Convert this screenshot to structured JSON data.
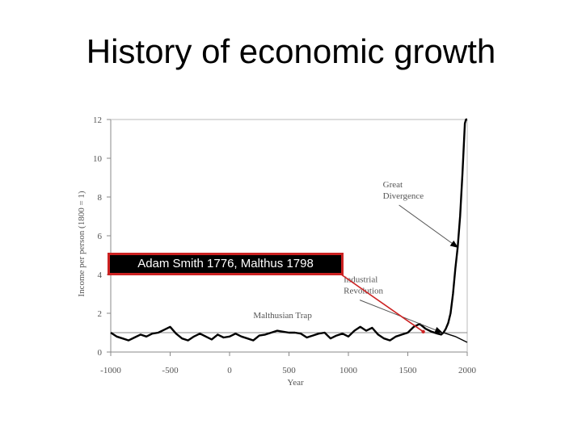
{
  "slide": {
    "title": "History of economic growth"
  },
  "callout": {
    "text": "Adam Smith 1776, Malthus 1798",
    "border_color": "#cc2222"
  },
  "chart_data": {
    "type": "line",
    "title": "",
    "xlabel": "Year",
    "ylabel": "Income per person (1800 = 1)",
    "xlim": [
      -1000,
      2000
    ],
    "ylim": [
      0,
      12
    ],
    "x_ticks": [
      -1000,
      -500,
      0,
      500,
      1000,
      1500,
      2000
    ],
    "y_ticks": [
      0,
      2,
      4,
      6,
      8,
      10,
      12
    ],
    "grid": false,
    "reference_line": {
      "y": 1
    },
    "series": [
      {
        "x": [
          -1000,
          -950,
          -900,
          -850,
          -800,
          -750,
          -700,
          -650,
          -600,
          -550,
          -500,
          -450,
          -400,
          -350,
          -300,
          -250,
          -200,
          -150,
          -100,
          -50,
          0,
          50,
          100,
          150,
          200,
          250,
          300,
          350,
          400,
          450,
          500,
          550,
          600,
          650,
          700,
          750,
          800,
          850,
          900,
          950,
          1000,
          1050,
          1100,
          1150,
          1200,
          1250,
          1300,
          1350,
          1400,
          1450,
          1500,
          1550,
          1600,
          1650,
          1700,
          1750,
          1780,
          1800,
          1820,
          1840,
          1860,
          1880,
          1900,
          1920,
          1940,
          1960,
          1980,
          1990,
          2000
        ],
        "y": [
          1.0,
          0.8,
          0.7,
          0.6,
          0.75,
          0.9,
          0.8,
          0.95,
          1.0,
          1.15,
          1.3,
          0.95,
          0.7,
          0.6,
          0.8,
          0.95,
          0.8,
          0.65,
          0.9,
          0.75,
          0.8,
          0.95,
          0.8,
          0.7,
          0.6,
          0.85,
          0.9,
          1.0,
          1.1,
          1.05,
          1.0,
          1.0,
          0.95,
          0.75,
          0.85,
          0.95,
          1.0,
          0.7,
          0.85,
          0.95,
          0.8,
          1.1,
          1.3,
          1.1,
          1.25,
          0.9,
          0.7,
          0.6,
          0.8,
          0.9,
          1.0,
          1.3,
          1.45,
          1.2,
          1.05,
          0.95,
          0.9,
          1.0,
          1.2,
          1.5,
          2.0,
          3.0,
          4.3,
          5.4,
          7.0,
          9.2,
          11.8,
          12.0,
          12.0
        ]
      },
      {
        "x": [
          1800,
          1850,
          1900,
          1950,
          2000
        ],
        "y": [
          1.0,
          0.9,
          0.8,
          0.65,
          0.5
        ]
      }
    ],
    "annotations": [
      {
        "text_lines": [
          "Great",
          "Divergence"
        ],
        "x": 1290,
        "y": 8.5,
        "arrow_to": {
          "x": 1920,
          "y": 5.4
        }
      },
      {
        "text_lines": [
          "Industrial",
          "Revolution"
        ],
        "x": 960,
        "y": 3.6,
        "arrow_to": {
          "x": 1790,
          "y": 1.0
        }
      },
      {
        "text_lines": [
          "Malthusian Trap"
        ],
        "x": 200,
        "y": 1.75
      }
    ],
    "red_pointer": {
      "from_x": 940,
      "from_y": 4.0,
      "to_x": 1630,
      "to_y": 1.05
    }
  }
}
